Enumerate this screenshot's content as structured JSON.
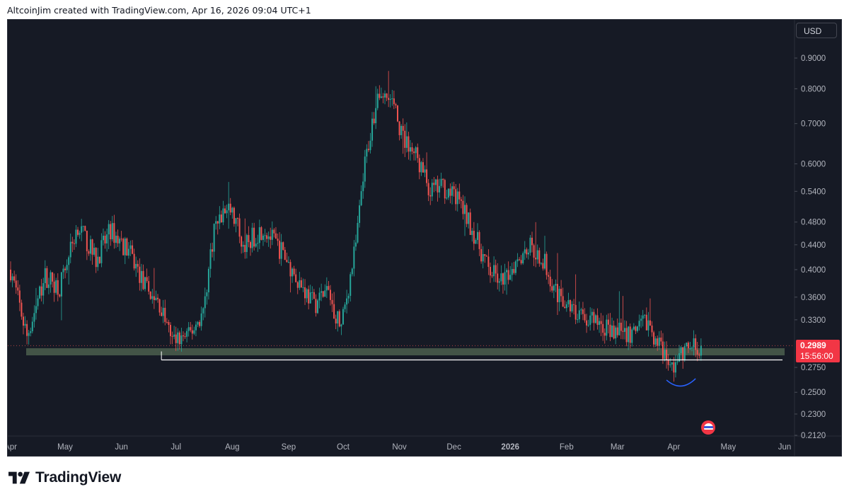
{
  "header": {
    "caption": "AltcoinJim created with TradingView.com, Apr 16, 2026 09:04 UTC+1"
  },
  "price_scale": {
    "currency": "USD",
    "ticks": [
      "0.9000",
      "0.8000",
      "0.7000",
      "0.6000",
      "0.5400",
      "0.4800",
      "0.4400",
      "0.4000",
      "0.3600",
      "0.3300",
      "0.2750",
      "0.2500",
      "0.2300",
      "0.2120"
    ]
  },
  "last_price": {
    "value": "0.2989",
    "countdown": "15:56:00",
    "color": "#f23645"
  },
  "time_scale": {
    "labels": [
      "Apr",
      "May",
      "Jun",
      "Jul",
      "Aug",
      "Sep",
      "Oct",
      "Nov",
      "Dec",
      "2026",
      "Feb",
      "Mar",
      "Apr",
      "May",
      "Jun"
    ]
  },
  "brand": {
    "name": "TradingView"
  },
  "colors": {
    "background": "#161a25",
    "up": "#26a69a",
    "down": "#ef5350",
    "support_zone": "#4b5f4e",
    "support_line": "#ffffff",
    "arc": "#2962ff"
  },
  "chart_data": {
    "type": "candlestick",
    "scale": "log",
    "x_range": [
      "2025-04-01",
      "2026-06-01"
    ],
    "ylim": [
      0.205,
      1.0
    ],
    "series": [
      {
        "points": [
          [
            "2025-04-01",
            0.4
          ],
          [
            "2025-04-10",
            0.31
          ],
          [
            "2025-04-20",
            0.39
          ],
          [
            "2025-04-28",
            0.375
          ],
          [
            "2025-05-08",
            0.475
          ],
          [
            "2025-05-18",
            0.415
          ],
          [
            "2025-05-26",
            0.465
          ],
          [
            "2025-06-05",
            0.43
          ],
          [
            "2025-06-14",
            0.375
          ],
          [
            "2025-06-22",
            0.35
          ],
          [
            "2025-06-29",
            0.305
          ],
          [
            "2025-07-08",
            0.31
          ],
          [
            "2025-07-16",
            0.34
          ],
          [
            "2025-07-22",
            0.47
          ],
          [
            "2025-07-30",
            0.51
          ],
          [
            "2025-08-08",
            0.44
          ],
          [
            "2025-08-18",
            0.47
          ],
          [
            "2025-08-28",
            0.43
          ],
          [
            "2025-09-05",
            0.39
          ],
          [
            "2025-09-15",
            0.35
          ],
          [
            "2025-09-22",
            0.37
          ],
          [
            "2025-09-30",
            0.32
          ],
          [
            "2025-10-08",
            0.44
          ],
          [
            "2025-10-13",
            0.6
          ],
          [
            "2025-10-20",
            0.79
          ],
          [
            "2025-10-28",
            0.76
          ],
          [
            "2025-11-03",
            0.66
          ],
          [
            "2025-11-10",
            0.62
          ],
          [
            "2025-11-18",
            0.54
          ],
          [
            "2025-11-25",
            0.55
          ],
          [
            "2025-12-04",
            0.52
          ],
          [
            "2025-12-12",
            0.46
          ],
          [
            "2025-12-20",
            0.4
          ],
          [
            "2025-12-28",
            0.38
          ],
          [
            "2026-01-05",
            0.42
          ],
          [
            "2026-01-12",
            0.44
          ],
          [
            "2026-01-20",
            0.41
          ],
          [
            "2026-01-28",
            0.36
          ],
          [
            "2026-02-05",
            0.34
          ],
          [
            "2026-02-14",
            0.33
          ],
          [
            "2026-02-22",
            0.32
          ],
          [
            "2026-03-02",
            0.32
          ],
          [
            "2026-03-10",
            0.31
          ],
          [
            "2026-03-17",
            0.33
          ],
          [
            "2026-03-24",
            0.3
          ],
          [
            "2026-03-30",
            0.275
          ],
          [
            "2026-04-03",
            0.283
          ],
          [
            "2026-04-08",
            0.295
          ],
          [
            "2026-04-16",
            0.2989
          ]
        ]
      }
    ],
    "annotations": [
      {
        "type": "zone",
        "from": "2025-04-01",
        "to": "2026-06-01",
        "y_low": 0.288,
        "y_high": 0.296
      },
      {
        "type": "horizontal-line",
        "from": "2025-06-23",
        "to": "2026-06-01",
        "y": 0.283
      },
      {
        "type": "arc",
        "from": "2026-03-28",
        "to": "2026-04-13",
        "y": 0.262
      }
    ]
  }
}
